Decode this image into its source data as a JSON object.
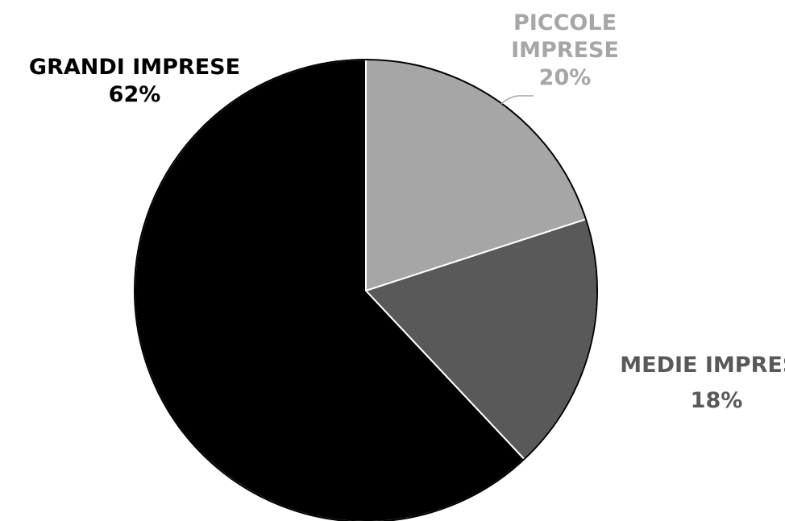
{
  "chart_data": {
    "type": "pie",
    "title": "",
    "slices": [
      {
        "key": "piccole",
        "label_lines": [
          "PICCOLE",
          "IMPRESE"
        ],
        "value": 20,
        "value_label": "20%",
        "color": "#a6a6a6",
        "label_color": "#a6a6a6"
      },
      {
        "key": "medie",
        "label_lines": [
          "MEDIE IMPRESE"
        ],
        "value": 18,
        "value_label": "18%",
        "color": "#595959",
        "label_color": "#595959"
      },
      {
        "key": "grandi",
        "label_lines": [
          "GRANDI IMPRESE"
        ],
        "value": 62,
        "value_label": "62%",
        "color": "#000000",
        "label_color": "#000000"
      }
    ],
    "start_angle_deg": 0,
    "direction": "clockwise",
    "legend": "none"
  }
}
